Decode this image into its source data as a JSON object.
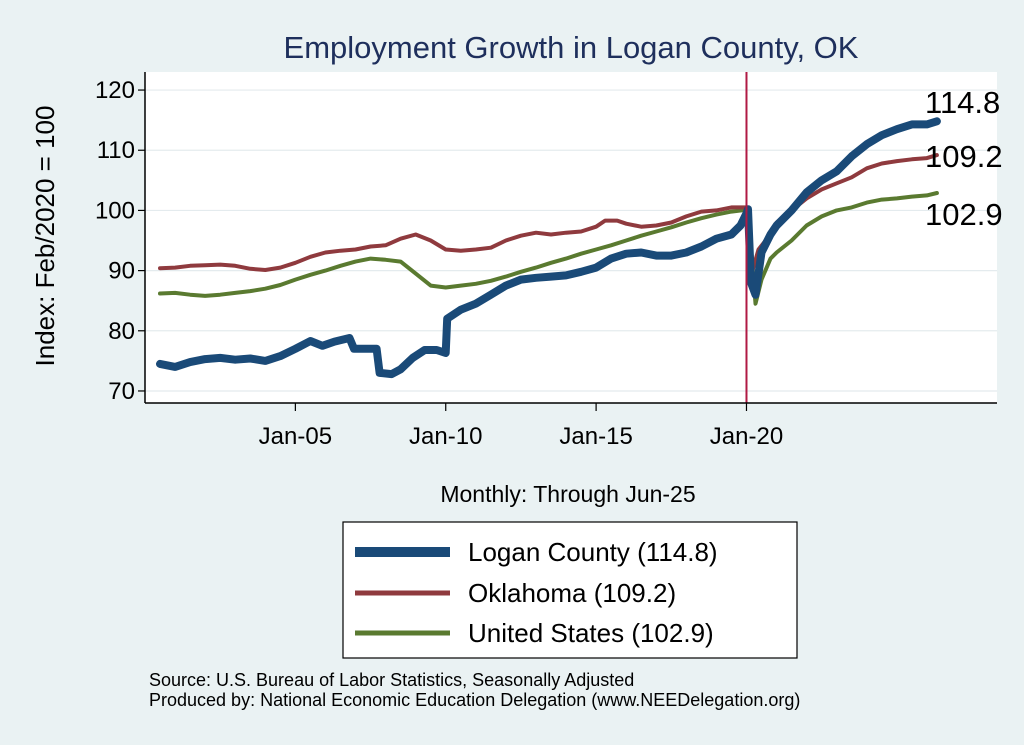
{
  "chart_data": {
    "type": "line",
    "title": "Employment Growth in Logan  County, OK",
    "ylabel": "Index: Feb/2020 = 100",
    "xlabel": "Monthly: Through Jun-25",
    "ylim": [
      68,
      123
    ],
    "xlim": [
      2000.0,
      2028.33
    ],
    "yticks": [
      70,
      80,
      90,
      100,
      110,
      120
    ],
    "xticks": [
      {
        "value": 2005.0,
        "label": "Jan-05"
      },
      {
        "value": 2010.0,
        "label": "Jan-10"
      },
      {
        "value": 2015.0,
        "label": "Jan-15"
      },
      {
        "value": 2020.0,
        "label": "Jan-20"
      }
    ],
    "vline": 2020.0,
    "series": [
      {
        "name": "Logan  County",
        "legend": "Logan  County (114.8)",
        "end_label": "114.8",
        "color": "#1a4a78",
        "width": 8,
        "points": [
          [
            2000.5,
            74.5
          ],
          [
            2001.0,
            74.0
          ],
          [
            2001.5,
            74.8
          ],
          [
            2002.0,
            75.3
          ],
          [
            2002.5,
            75.5
          ],
          [
            2003.0,
            75.2
          ],
          [
            2003.5,
            75.4
          ],
          [
            2004.0,
            75.0
          ],
          [
            2004.5,
            75.8
          ],
          [
            2005.0,
            77.0
          ],
          [
            2005.5,
            78.3
          ],
          [
            2005.9,
            77.5
          ],
          [
            2006.3,
            78.2
          ],
          [
            2006.8,
            78.8
          ],
          [
            2006.95,
            77.0
          ],
          [
            2007.7,
            77.0
          ],
          [
            2007.8,
            73.0
          ],
          [
            2008.2,
            72.8
          ],
          [
            2008.5,
            73.6
          ],
          [
            2008.9,
            75.5
          ],
          [
            2009.3,
            76.8
          ],
          [
            2009.7,
            76.8
          ],
          [
            2010.0,
            76.3
          ],
          [
            2010.05,
            82.0
          ],
          [
            2010.5,
            83.5
          ],
          [
            2011.0,
            84.5
          ],
          [
            2011.5,
            86.0
          ],
          [
            2012.0,
            87.5
          ],
          [
            2012.5,
            88.5
          ],
          [
            2013.0,
            88.8
          ],
          [
            2013.5,
            89.0
          ],
          [
            2014.0,
            89.2
          ],
          [
            2014.5,
            89.8
          ],
          [
            2015.0,
            90.5
          ],
          [
            2015.5,
            92.0
          ],
          [
            2016.0,
            92.8
          ],
          [
            2016.5,
            93.0
          ],
          [
            2017.0,
            92.5
          ],
          [
            2017.5,
            92.5
          ],
          [
            2018.0,
            93.0
          ],
          [
            2018.5,
            94.0
          ],
          [
            2019.0,
            95.3
          ],
          [
            2019.5,
            96.0
          ],
          [
            2019.8,
            97.5
          ],
          [
            2020.0,
            99.5
          ],
          [
            2020.05,
            100.2
          ],
          [
            2020.15,
            88.0
          ],
          [
            2020.3,
            86.0
          ],
          [
            2020.5,
            93.0
          ],
          [
            2020.8,
            96.0
          ],
          [
            2021.0,
            97.5
          ],
          [
            2021.5,
            100.0
          ],
          [
            2022.0,
            103.0
          ],
          [
            2022.5,
            105.0
          ],
          [
            2023.0,
            106.5
          ],
          [
            2023.5,
            109.0
          ],
          [
            2024.0,
            111.0
          ],
          [
            2024.5,
            112.5
          ],
          [
            2025.0,
            113.5
          ],
          [
            2025.5,
            114.3
          ],
          [
            2026.0,
            114.3
          ],
          [
            2026.33,
            114.8
          ]
        ]
      },
      {
        "name": "Oklahoma",
        "legend": "Oklahoma (109.2)",
        "end_label": "109.2",
        "color": "#8f3a3e",
        "width": 4,
        "points": [
          [
            2000.5,
            90.4
          ],
          [
            2001.0,
            90.5
          ],
          [
            2001.5,
            90.8
          ],
          [
            2002.0,
            90.9
          ],
          [
            2002.5,
            91.0
          ],
          [
            2003.0,
            90.8
          ],
          [
            2003.5,
            90.3
          ],
          [
            2004.0,
            90.1
          ],
          [
            2004.5,
            90.5
          ],
          [
            2005.0,
            91.3
          ],
          [
            2005.5,
            92.3
          ],
          [
            2006.0,
            93.0
          ],
          [
            2006.5,
            93.3
          ],
          [
            2007.0,
            93.5
          ],
          [
            2007.5,
            94.0
          ],
          [
            2008.0,
            94.2
          ],
          [
            2008.5,
            95.3
          ],
          [
            2009.0,
            96.0
          ],
          [
            2009.5,
            95.0
          ],
          [
            2010.0,
            93.5
          ],
          [
            2010.5,
            93.3
          ],
          [
            2011.0,
            93.5
          ],
          [
            2011.5,
            93.8
          ],
          [
            2012.0,
            95.0
          ],
          [
            2012.5,
            95.8
          ],
          [
            2013.0,
            96.3
          ],
          [
            2013.5,
            96.0
          ],
          [
            2014.0,
            96.3
          ],
          [
            2014.5,
            96.5
          ],
          [
            2015.0,
            97.3
          ],
          [
            2015.3,
            98.3
          ],
          [
            2015.7,
            98.3
          ],
          [
            2016.0,
            97.8
          ],
          [
            2016.5,
            97.3
          ],
          [
            2017.0,
            97.5
          ],
          [
            2017.5,
            98.0
          ],
          [
            2018.0,
            99.0
          ],
          [
            2018.5,
            99.8
          ],
          [
            2019.0,
            100.0
          ],
          [
            2019.5,
            100.5
          ],
          [
            2020.0,
            100.5
          ],
          [
            2020.05,
            100.2
          ],
          [
            2020.2,
            90.0
          ],
          [
            2020.4,
            93.5
          ],
          [
            2020.8,
            96.0
          ],
          [
            2021.0,
            98.0
          ],
          [
            2021.5,
            100.0
          ],
          [
            2022.0,
            102.0
          ],
          [
            2022.5,
            103.5
          ],
          [
            2023.0,
            104.5
          ],
          [
            2023.5,
            105.5
          ],
          [
            2024.0,
            107.0
          ],
          [
            2024.5,
            107.8
          ],
          [
            2025.0,
            108.2
          ],
          [
            2025.5,
            108.5
          ],
          [
            2026.0,
            108.7
          ],
          [
            2026.33,
            109.2
          ]
        ]
      },
      {
        "name": "United States",
        "legend": "United States (102.9)",
        "end_label": "102.9",
        "color": "#5a7a30",
        "width": 4,
        "points": [
          [
            2000.5,
            86.2
          ],
          [
            2001.0,
            86.3
          ],
          [
            2001.5,
            86.0
          ],
          [
            2002.0,
            85.8
          ],
          [
            2002.5,
            86.0
          ],
          [
            2003.0,
            86.3
          ],
          [
            2003.5,
            86.6
          ],
          [
            2004.0,
            87.0
          ],
          [
            2004.5,
            87.6
          ],
          [
            2005.0,
            88.5
          ],
          [
            2005.5,
            89.3
          ],
          [
            2006.0,
            90.0
          ],
          [
            2006.5,
            90.8
          ],
          [
            2007.0,
            91.5
          ],
          [
            2007.5,
            92.0
          ],
          [
            2008.0,
            91.8
          ],
          [
            2008.5,
            91.5
          ],
          [
            2009.0,
            89.5
          ],
          [
            2009.5,
            87.5
          ],
          [
            2010.0,
            87.2
          ],
          [
            2010.5,
            87.5
          ],
          [
            2011.0,
            87.8
          ],
          [
            2011.5,
            88.3
          ],
          [
            2012.0,
            89.0
          ],
          [
            2012.5,
            89.8
          ],
          [
            2013.0,
            90.5
          ],
          [
            2013.5,
            91.3
          ],
          [
            2014.0,
            92.0
          ],
          [
            2014.5,
            92.8
          ],
          [
            2015.0,
            93.5
          ],
          [
            2015.5,
            94.2
          ],
          [
            2016.0,
            95.0
          ],
          [
            2016.5,
            95.8
          ],
          [
            2017.0,
            96.5
          ],
          [
            2017.5,
            97.2
          ],
          [
            2018.0,
            98.0
          ],
          [
            2018.5,
            98.7
          ],
          [
            2019.0,
            99.3
          ],
          [
            2019.5,
            99.8
          ],
          [
            2020.0,
            100.1
          ],
          [
            2020.05,
            100.0
          ],
          [
            2020.3,
            84.5
          ],
          [
            2020.5,
            88.5
          ],
          [
            2020.8,
            92.0
          ],
          [
            2021.0,
            93.0
          ],
          [
            2021.5,
            95.0
          ],
          [
            2022.0,
            97.5
          ],
          [
            2022.5,
            99.0
          ],
          [
            2023.0,
            100.0
          ],
          [
            2023.5,
            100.5
          ],
          [
            2024.0,
            101.3
          ],
          [
            2024.5,
            101.8
          ],
          [
            2025.0,
            102.0
          ],
          [
            2025.5,
            102.3
          ],
          [
            2026.0,
            102.5
          ],
          [
            2026.33,
            102.9
          ]
        ]
      }
    ]
  },
  "footer": {
    "source": "Source: U.S. Bureau of Labor Statistics, Seasonally Adjusted",
    "produced": "Produced by: National Economic Education Delegation (www.NEEDelegation.org)"
  }
}
